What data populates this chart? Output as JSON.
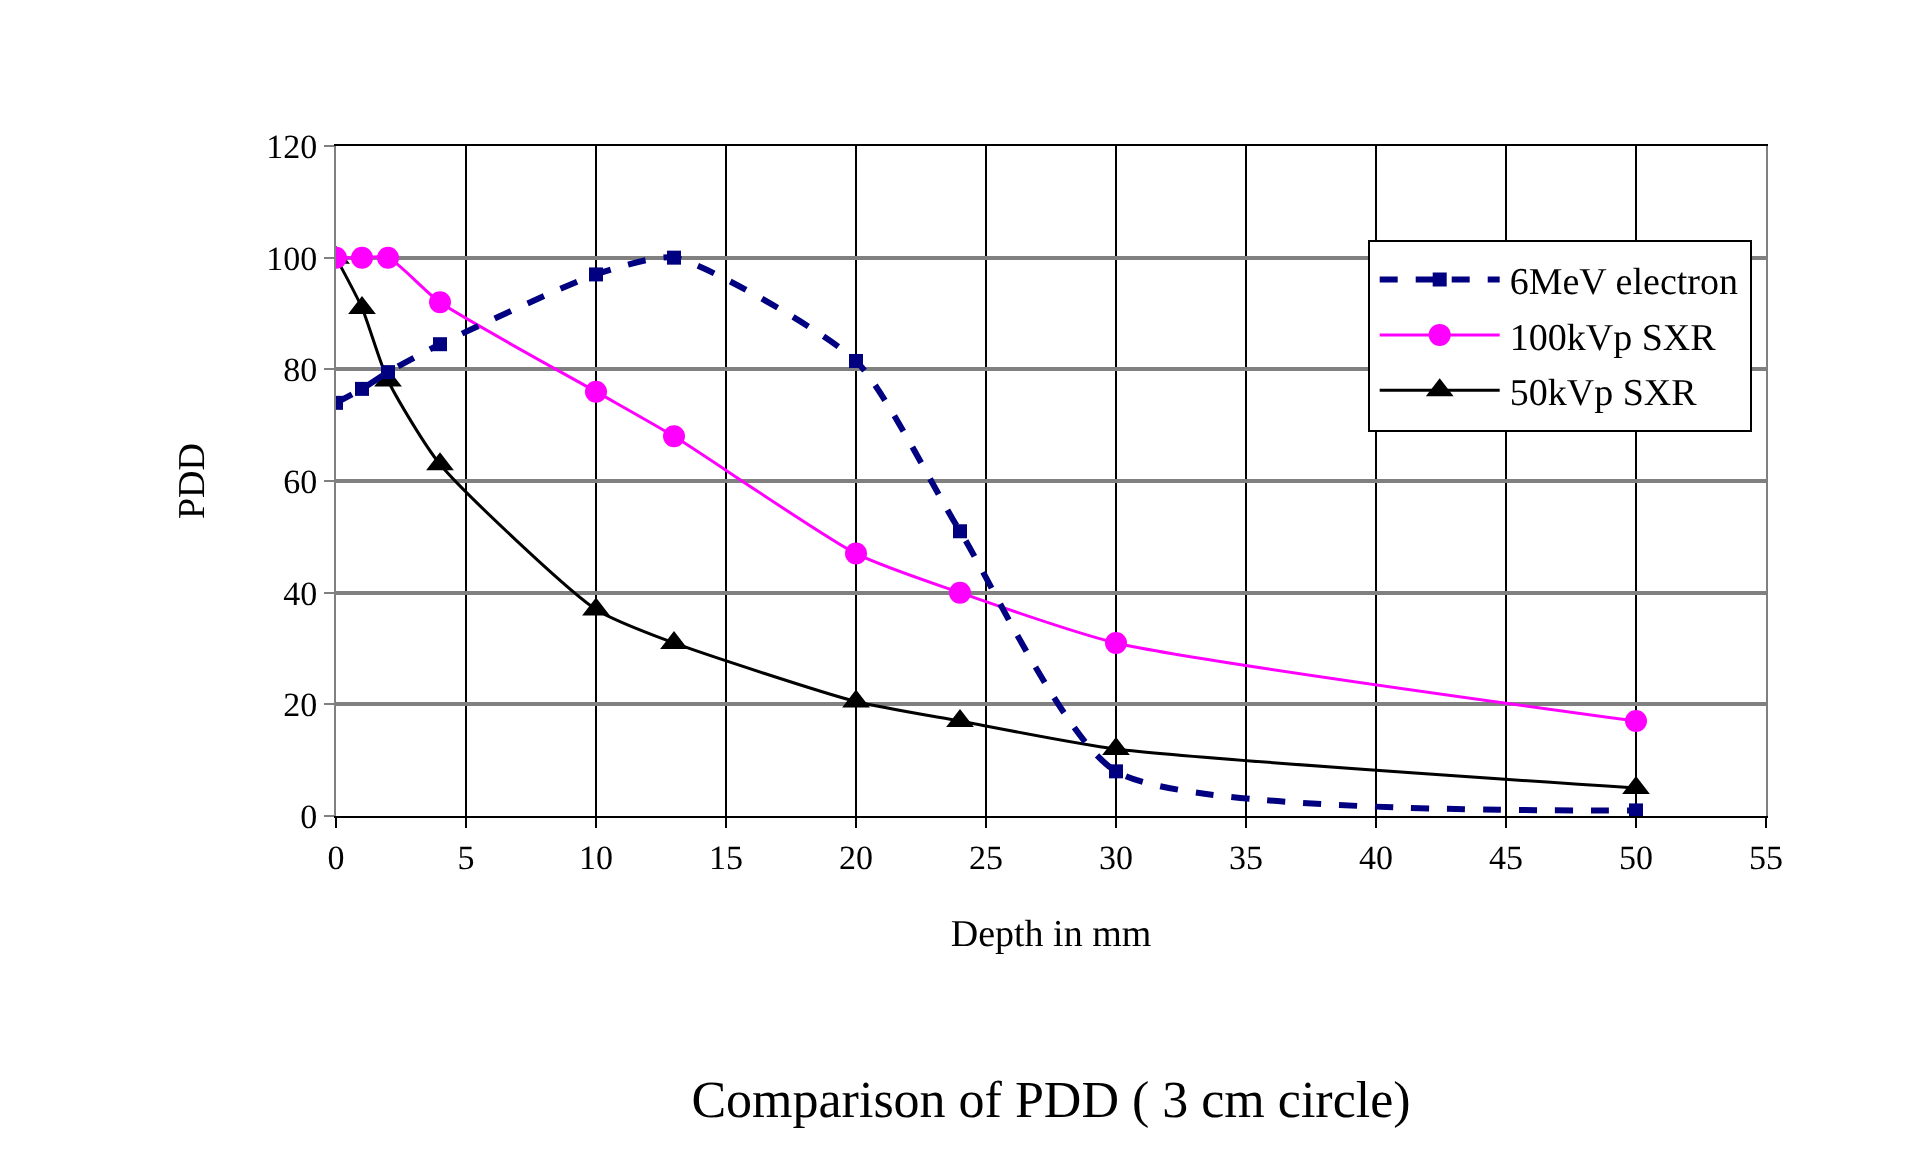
{
  "chart_data": {
    "type": "line",
    "title": "Comparison of PDD ( 3 cm circle)",
    "xlabel": "Depth in mm",
    "ylabel": "PDD",
    "x": [
      0,
      1,
      2,
      4,
      10,
      13,
      20,
      24,
      30,
      50
    ],
    "series": [
      {
        "name": "6MeV electron",
        "color": "#000080",
        "values": [
          74,
          76.5,
          79.5,
          84.5,
          97,
          100,
          81.5,
          51,
          8,
          1
        ],
        "marker": "square",
        "line_style": "dashed"
      },
      {
        "name": "100kVp SXR",
        "color": "#ff00ff",
        "values": [
          100,
          100,
          100,
          92,
          76,
          68,
          47,
          40,
          31,
          17
        ],
        "marker": "circle",
        "line_style": "solid"
      },
      {
        "name": "50kVp SXR",
        "color": "#000000",
        "values": [
          100,
          91,
          78,
          63,
          37,
          31,
          20.5,
          17,
          12,
          5
        ],
        "marker": "triangle",
        "line_style": "solid"
      }
    ],
    "xlim": [
      0,
      55
    ],
    "xticks": [
      0,
      5,
      10,
      15,
      20,
      25,
      30,
      35,
      40,
      45,
      50,
      55
    ],
    "ylim": [
      0,
      120
    ],
    "yticks": [
      0,
      20,
      40,
      60,
      80,
      100,
      120
    ],
    "grid": true,
    "legend": "top right"
  }
}
